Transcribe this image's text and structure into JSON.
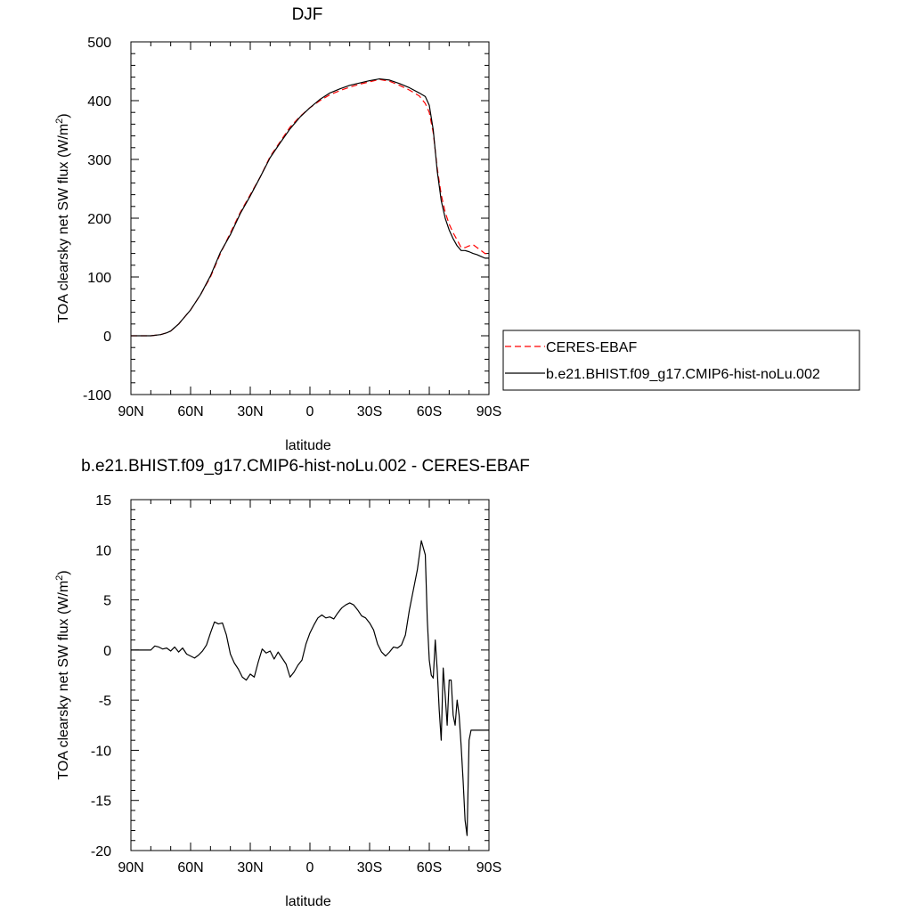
{
  "chart_data": [
    {
      "type": "line",
      "title": "DJF",
      "xlabel": "latitude",
      "ylabel": "TOA clearsky net SW flux (W/m",
      "ylabel_sup": "2",
      "ylabel_close": ")",
      "xlim": [
        90,
        -90
      ],
      "ylim": [
        -100,
        500
      ],
      "xticks": [
        90,
        60,
        30,
        0,
        -30,
        -60,
        -90
      ],
      "xtick_labels": [
        "90N",
        "60N",
        "30N",
        "0",
        "30S",
        "60S",
        "90S"
      ],
      "yticks": [
        -100,
        0,
        100,
        200,
        300,
        400,
        500
      ],
      "ytick_labels": [
        "-100",
        "0",
        "100",
        "200",
        "300",
        "400",
        "500"
      ],
      "series": [
        {
          "name": "CERES-EBAF",
          "color": "#ff0000",
          "dash": true,
          "x": [
            90,
            85,
            80,
            75,
            72,
            70,
            68,
            66,
            64,
            62,
            60,
            55,
            50,
            45,
            40,
            35,
            30,
            25,
            20,
            15,
            10,
            5,
            0,
            -5,
            -10,
            -15,
            -20,
            -25,
            -30,
            -35,
            -40,
            -45,
            -50,
            -55,
            -58,
            -60,
            -62,
            -64,
            -66,
            -68,
            -70,
            -72,
            -74,
            -76,
            -78,
            -80,
            -82,
            -84,
            -86,
            -88,
            -90
          ],
          "y": [
            0,
            0,
            0,
            2,
            5,
            8,
            14,
            20,
            28,
            36,
            44,
            70,
            100,
            140,
            175,
            210,
            240,
            270,
            305,
            330,
            355,
            373,
            388,
            400,
            410,
            417,
            423,
            428,
            432,
            436,
            433,
            426,
            418,
            408,
            395,
            380,
            345,
            285,
            240,
            210,
            190,
            175,
            163,
            150,
            150,
            153,
            155,
            150,
            145,
            140,
            140
          ]
        },
        {
          "name": "b.e21.BHIST.f09_g17.CMIP6-hist-noLu.002",
          "color": "#000000",
          "dash": false,
          "x": [
            90,
            85,
            80,
            75,
            72,
            70,
            68,
            66,
            64,
            62,
            60,
            55,
            50,
            45,
            40,
            35,
            30,
            25,
            20,
            15,
            10,
            5,
            0,
            -5,
            -10,
            -15,
            -20,
            -25,
            -30,
            -35,
            -40,
            -45,
            -50,
            -55,
            -58,
            -60,
            -62,
            -64,
            -66,
            -68,
            -70,
            -72,
            -74,
            -76,
            -78,
            -80,
            -82,
            -84,
            -86,
            -88,
            -90
          ],
          "y": [
            0,
            0,
            0,
            2,
            5,
            8,
            14,
            20,
            28,
            36,
            44,
            70,
            102,
            142,
            172,
            208,
            238,
            270,
            303,
            328,
            352,
            372,
            388,
            402,
            413,
            420,
            426,
            430,
            434,
            437,
            435,
            429,
            422,
            413,
            407,
            392,
            350,
            280,
            230,
            200,
            180,
            165,
            153,
            145,
            145,
            143,
            140,
            138,
            135,
            132,
            132
          ]
        }
      ],
      "legend": {
        "placement": "right",
        "entries": [
          "CERES-EBAF",
          "b.e21.BHIST.f09_g17.CMIP6-hist-noLu.002"
        ]
      },
      "grid": false
    },
    {
      "type": "line",
      "title": "b.e21.BHIST.f09_g17.CMIP6-hist-noLu.002 - CERES-EBAF",
      "xlabel": "latitude",
      "ylabel": "TOA clearsky net SW flux (W/m",
      "ylabel_sup": "2",
      "ylabel_close": ")",
      "xlim": [
        90,
        -90
      ],
      "ylim": [
        -20,
        15
      ],
      "xticks": [
        90,
        60,
        30,
        0,
        -30,
        -60,
        -90
      ],
      "xtick_labels": [
        "90N",
        "60N",
        "30N",
        "0",
        "30S",
        "60S",
        "90S"
      ],
      "yticks": [
        -20,
        -15,
        -10,
        -5,
        0,
        5,
        10,
        15
      ],
      "ytick_labels": [
        "-20",
        "-15",
        "-10",
        "-5",
        "0",
        "5",
        "10",
        "15"
      ],
      "series": [
        {
          "color": "#000000",
          "dash": false,
          "x": [
            90,
            85,
            80,
            78,
            76,
            74,
            72,
            70,
            68,
            66,
            64,
            62,
            60,
            58,
            56,
            54,
            52,
            50,
            48,
            46,
            44,
            42,
            40,
            38,
            36,
            34,
            32,
            30,
            28,
            26,
            24,
            22,
            20,
            18,
            16,
            14,
            12,
            10,
            8,
            6,
            4,
            2,
            0,
            -2,
            -4,
            -6,
            -8,
            -10,
            -12,
            -14,
            -16,
            -18,
            -20,
            -22,
            -24,
            -26,
            -28,
            -30,
            -32,
            -34,
            -36,
            -38,
            -40,
            -42,
            -44,
            -46,
            -48,
            -50,
            -52,
            -54,
            -56,
            -58,
            -59,
            -60,
            -61,
            -62,
            -63,
            -64,
            -65,
            -66,
            -67,
            -68,
            -69,
            -70,
            -71,
            -72,
            -73,
            -74,
            -75,
            -76,
            -77,
            -78,
            -79,
            -80,
            -81,
            -82,
            -83,
            -84,
            -85,
            -86,
            -87,
            -88,
            -89,
            -90
          ],
          "y": [
            0,
            0,
            0,
            0.4,
            0.3,
            0.1,
            0.2,
            -0.1,
            0.3,
            -0.2,
            0.2,
            -0.4,
            -0.6,
            -0.8,
            -0.5,
            -0.1,
            0.5,
            1.7,
            2.8,
            2.6,
            2.7,
            1.5,
            -0.4,
            -1.3,
            -1.9,
            -2.7,
            -3.0,
            -2.4,
            -2.7,
            -1.2,
            0.1,
            -0.3,
            -0.1,
            -0.9,
            -0.2,
            -0.8,
            -1.4,
            -2.7,
            -2.2,
            -1.5,
            -1.0,
            0.6,
            1.7,
            2.5,
            3.2,
            3.5,
            3.2,
            3.3,
            3.1,
            3.7,
            4.2,
            4.5,
            4.7,
            4.5,
            4.0,
            3.4,
            3.2,
            2.7,
            2.0,
            0.6,
            -0.2,
            -0.6,
            -0.2,
            0.3,
            0.2,
            0.5,
            1.5,
            4.0,
            6.0,
            8.0,
            10.9,
            9.5,
            3.0,
            -1.0,
            -2.5,
            -2.8,
            1.0,
            -2.0,
            -6.0,
            -9.0,
            -1.8,
            -4.5,
            -7.5,
            -3.0,
            -3.0,
            -6.5,
            -7.5,
            -5.0,
            -6.5,
            -9.5,
            -13.0,
            -17.0,
            -18.5,
            -9.0,
            -8.0,
            -8.0,
            -8.0,
            -8.0,
            -8.0,
            -8.0,
            -8.0,
            -8.0,
            -8.0,
            -8.0
          ]
        }
      ],
      "grid": false
    }
  ]
}
